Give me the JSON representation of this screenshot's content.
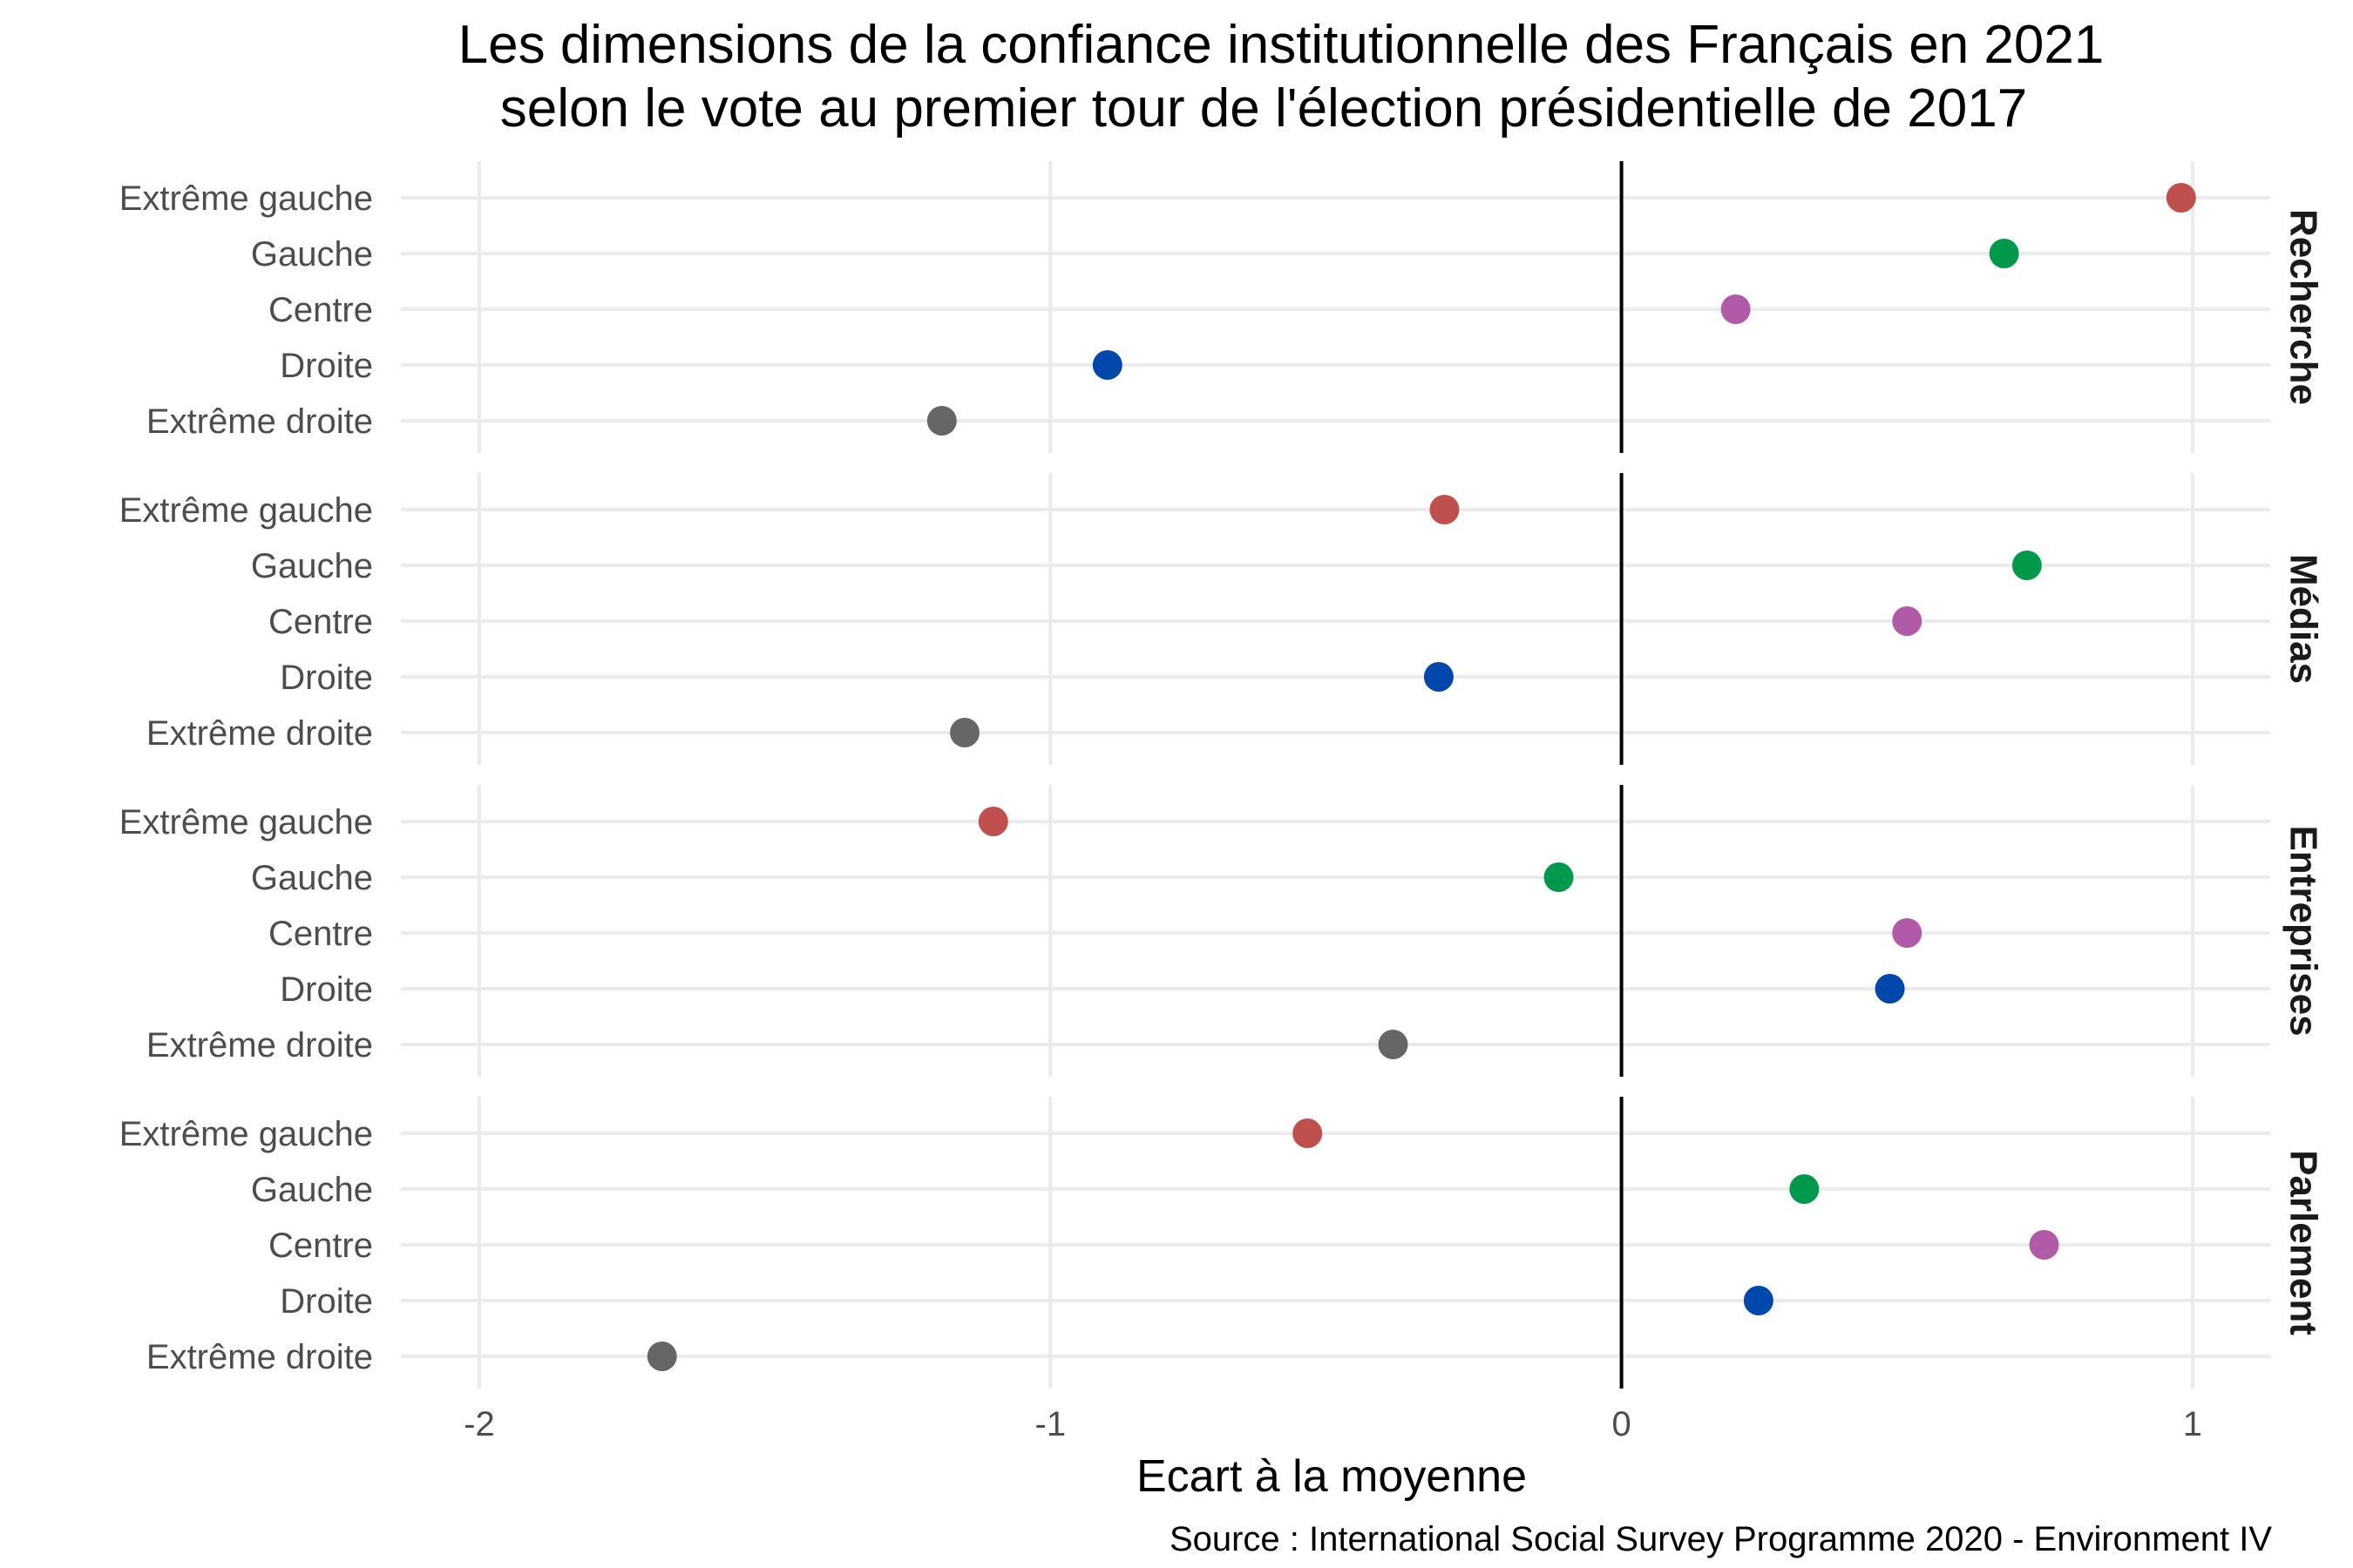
{
  "chart_data": {
    "type": "scatter",
    "title": "Les dimensions de la confiance institutionnelle des Français en 2021",
    "subtitle": "selon le vote au premier tour de l'élection présidentielle de 2017",
    "xlabel": "Ecart à la moyenne",
    "caption": "Source : International Social Survey Programme 2020 - Environment IV",
    "xlim": [
      -2.15,
      1.15
    ],
    "x_ticks": [
      -2,
      -1,
      0,
      1
    ],
    "x_tick_labels": [
      "-2",
      "-1",
      "0",
      "1"
    ],
    "reference_line_x": 0,
    "grid": true,
    "categories": [
      "Extrême gauche",
      "Gauche",
      "Centre",
      "Droite",
      "Extrême droite"
    ],
    "colors": {
      "Extrême gauche": "#c0504d",
      "Gauche": "#00994c",
      "Centre": "#b05aa8",
      "Droite": "#0047ab",
      "Extrême droite": "#666666"
    },
    "panels": [
      {
        "name": "Recherche",
        "values": [
          0.98,
          0.67,
          0.2,
          -0.9,
          -1.19
        ]
      },
      {
        "name": "Médias",
        "values": [
          -0.31,
          0.71,
          0.5,
          -0.32,
          -1.15
        ]
      },
      {
        "name": "Entreprises",
        "values": [
          -1.1,
          -0.11,
          0.5,
          0.47,
          -0.4
        ]
      },
      {
        "name": "Parlement",
        "values": [
          -0.55,
          0.32,
          0.74,
          0.24,
          -1.68
        ]
      }
    ]
  }
}
